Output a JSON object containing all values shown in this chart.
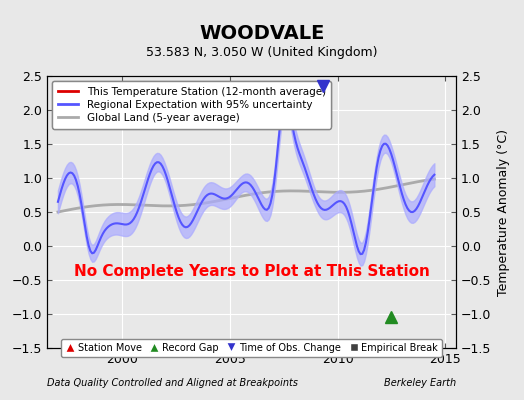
{
  "title": "WOODVALE",
  "subtitle": "53.583 N, 3.050 W (United Kingdom)",
  "ylabel": "Temperature Anomaly (°C)",
  "xlabel_left": "Data Quality Controlled and Aligned at Breakpoints",
  "xlabel_right": "Berkeley Earth",
  "no_data_text": "No Complete Years to Plot at This Station",
  "ylim": [
    -1.5,
    2.5
  ],
  "xlim_start": 1996.5,
  "xlim_end": 2015.5,
  "xticks": [
    2000,
    2005,
    2010,
    2015
  ],
  "yticks": [
    -1.5,
    -1.0,
    -0.5,
    0.0,
    0.5,
    1.0,
    1.5,
    2.0,
    2.5
  ],
  "bg_color": "#e8e8e8",
  "plot_bg_color": "#e8e8e8",
  "regional_color": "#5555ff",
  "regional_fill_color": "#aaaaff",
  "global_color": "#aaaaaa",
  "station_color": "#dd0000",
  "legend_entries": [
    {
      "label": "This Temperature Station (12-month average)",
      "color": "#dd0000",
      "lw": 2
    },
    {
      "label": "Regional Expectation with 95% uncertainty",
      "color": "#5555ff",
      "lw": 2
    },
    {
      "label": "Global Land (5-year average)",
      "color": "#aaaaaa",
      "lw": 2
    }
  ],
  "marker_legend": [
    {
      "label": "Station Move",
      "color": "#dd0000",
      "marker": "^"
    },
    {
      "label": "Record Gap",
      "color": "#228B22",
      "marker": "^"
    },
    {
      "label": "Time of Obs. Change",
      "color": "#0000cc",
      "marker": "v"
    },
    {
      "label": "Empirical Break",
      "color": "#404040",
      "marker": "s"
    }
  ],
  "record_gap_x": 2012.5,
  "record_gap_y": -1.05,
  "time_obs_change_x": 2009.3,
  "time_obs_change_y": 2.35
}
